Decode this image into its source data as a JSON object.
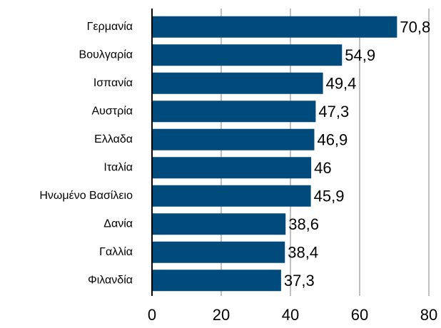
{
  "chart_data": {
    "type": "barh",
    "categories": [
      "Γερμανία",
      "Βουλγαρία",
      "Ισπανία",
      "Αυστρία",
      "Ελλαδα",
      "Ιταλία",
      "Ηνωμένο Βασίλειο",
      "Δανία",
      "Γαλλία",
      "Φιλανδία"
    ],
    "values": [
      70.8,
      54.9,
      49.4,
      47.3,
      46.9,
      46,
      45.9,
      38.6,
      38.4,
      37.3
    ],
    "value_labels": [
      "70,8",
      "54,9",
      "49,4",
      "47,3",
      "46,9",
      "46",
      "45,9",
      "38,6",
      "38,4",
      "37,3"
    ],
    "color": "#004a7c",
    "xlim": [
      0,
      80
    ],
    "xticks": [
      0,
      20,
      40,
      60,
      80
    ],
    "grid": true
  }
}
